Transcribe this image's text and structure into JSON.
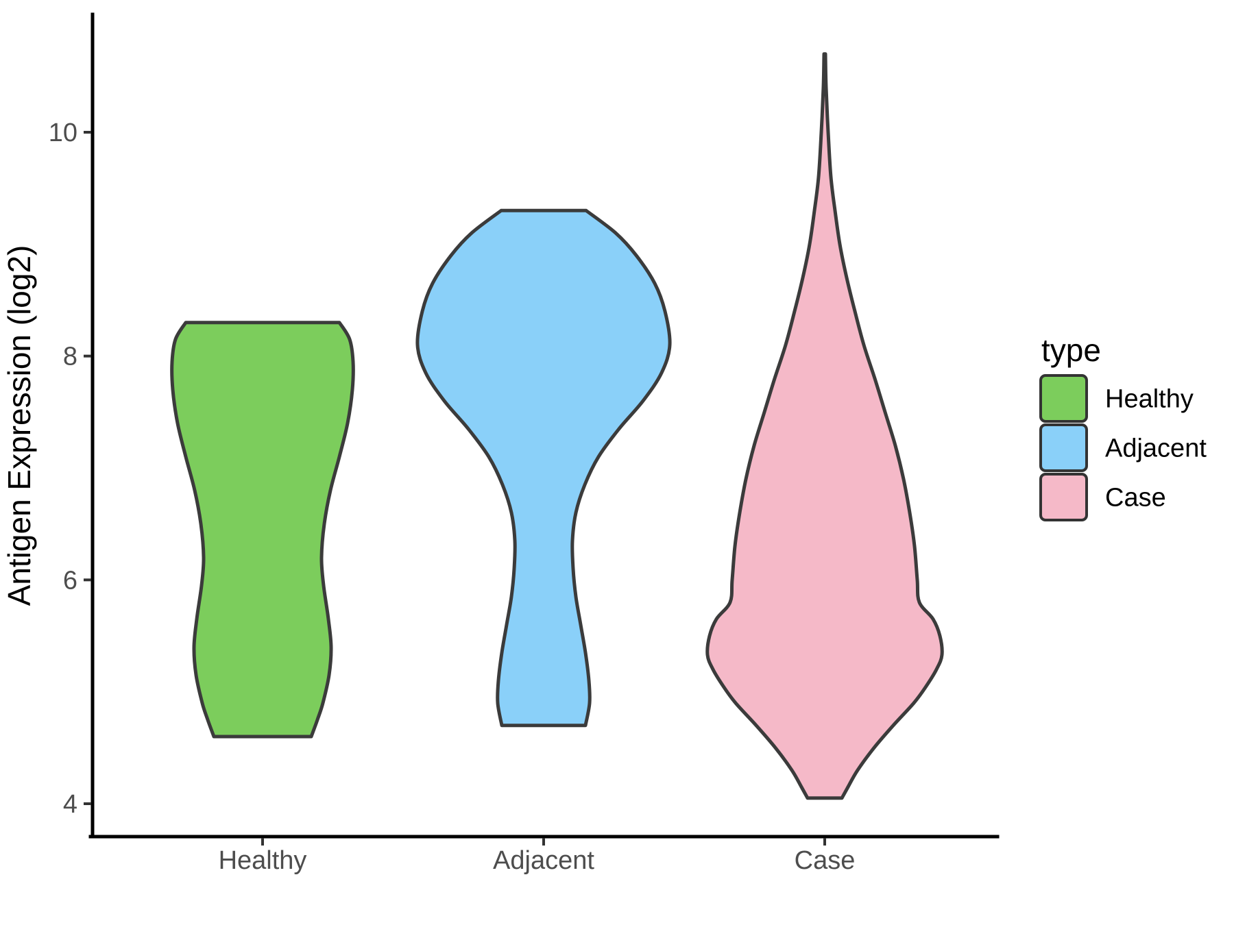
{
  "chart_data": {
    "type": "violin",
    "title": "",
    "xlabel": "",
    "ylabel": "Antigen Expression (log2)",
    "categories": [
      "Healthy",
      "Adjacent",
      "Case"
    ],
    "y_ticks": [
      10,
      8,
      6,
      4
    ],
    "y_axis_range": [
      3.72,
      11.05
    ],
    "grid": false,
    "legend": {
      "title": "type",
      "position": "right",
      "entries": [
        {
          "label": "Healthy",
          "color": "#7CCD5C"
        },
        {
          "label": "Adjacent",
          "color": "#8AD0F9"
        },
        {
          "label": "Case",
          "color": "#F5B9C8"
        }
      ]
    },
    "colors": {
      "outline": "#3B3B3B",
      "axis_line": "#000000",
      "tick_mark": "#333333",
      "tick_label": "#4D4D4D"
    },
    "series": [
      {
        "name": "Healthy",
        "fill": "#7CCD5C",
        "y_min": 4.6,
        "y_max": 8.3,
        "flat_top": true,
        "flat_bottom": true,
        "profile": [
          [
            8.3,
            112
          ],
          [
            8.15,
            127
          ],
          [
            7.95,
            132
          ],
          [
            7.7,
            131
          ],
          [
            7.4,
            124
          ],
          [
            7.1,
            112
          ],
          [
            6.8,
            99
          ],
          [
            6.5,
            90
          ],
          [
            6.2,
            86
          ],
          [
            5.95,
            89
          ],
          [
            5.65,
            96
          ],
          [
            5.4,
            100
          ],
          [
            5.15,
            97
          ],
          [
            4.9,
            88
          ],
          [
            4.75,
            80
          ],
          [
            4.6,
            71
          ]
        ]
      },
      {
        "name": "Adjacent",
        "fill": "#8AD0F9",
        "y_min": 4.7,
        "y_max": 9.3,
        "flat_top": true,
        "flat_bottom": true,
        "profile": [
          [
            9.3,
            62
          ],
          [
            9.1,
            105
          ],
          [
            8.9,
            135
          ],
          [
            8.65,
            162
          ],
          [
            8.4,
            177
          ],
          [
            8.1,
            184
          ],
          [
            7.85,
            172
          ],
          [
            7.6,
            145
          ],
          [
            7.35,
            110
          ],
          [
            7.1,
            80
          ],
          [
            6.85,
            60
          ],
          [
            6.6,
            47
          ],
          [
            6.35,
            42
          ],
          [
            6.1,
            43
          ],
          [
            5.85,
            47
          ],
          [
            5.6,
            54
          ],
          [
            5.35,
            61
          ],
          [
            5.1,
            66
          ],
          [
            4.9,
            67
          ],
          [
            4.7,
            61
          ]
        ]
      },
      {
        "name": "Case",
        "fill": "#F5B9C8",
        "y_min": 4.05,
        "y_max": 10.72,
        "flat_top": false,
        "flat_bottom": true,
        "profile": [
          [
            10.7,
            1
          ],
          [
            10.4,
            2
          ],
          [
            10.0,
            5
          ],
          [
            9.6,
            9
          ],
          [
            9.3,
            15
          ],
          [
            9.0,
            22
          ],
          [
            8.7,
            32
          ],
          [
            8.4,
            44
          ],
          [
            8.1,
            57
          ],
          [
            7.8,
            73
          ],
          [
            7.5,
            88
          ],
          [
            7.2,
            103
          ],
          [
            6.9,
            115
          ],
          [
            6.6,
            124
          ],
          [
            6.3,
            131
          ],
          [
            6.0,
            135
          ],
          [
            5.8,
            138
          ],
          [
            5.65,
            158
          ],
          [
            5.5,
            168
          ],
          [
            5.33,
            171
          ],
          [
            5.2,
            163
          ],
          [
            5.05,
            148
          ],
          [
            4.9,
            130
          ],
          [
            4.7,
            100
          ],
          [
            4.5,
            72
          ],
          [
            4.3,
            48
          ],
          [
            4.15,
            34
          ],
          [
            4.05,
            25
          ]
        ]
      }
    ]
  }
}
